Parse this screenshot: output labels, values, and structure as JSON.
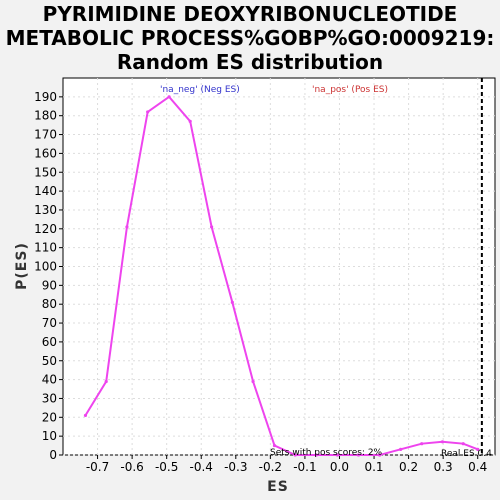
{
  "title_lines": [
    "PYRIMIDINE DEOXYRIBONUCLEOTIDE",
    "METABOLIC PROCESS%GOBP%GO:0009219:",
    "Random ES distribution"
  ],
  "chart_data": {
    "type": "line",
    "xlabel": "ES",
    "ylabel": "P(ES)",
    "xlim": [
      -0.8,
      0.45
    ],
    "ylim": [
      0,
      200
    ],
    "xticks": [
      "-0.7",
      "-0.6",
      "-0.5",
      "-0.4",
      "-0.3",
      "-0.2",
      "-0.1",
      "0.0",
      "0.1",
      "0.2",
      "0.3",
      "0.4"
    ],
    "yticks": [
      "0",
      "10",
      "20",
      "30",
      "40",
      "50",
      "60",
      "70",
      "80",
      "90",
      "100",
      "110",
      "120",
      "130",
      "140",
      "150",
      "160",
      "170",
      "180",
      "190"
    ],
    "grid": true,
    "series_color": "#ee44ee",
    "x": [
      -0.735,
      -0.675,
      -0.615,
      -0.555,
      -0.493,
      -0.432,
      -0.37,
      -0.31,
      -0.25,
      -0.188,
      -0.128,
      -0.067,
      -0.006,
      0.055,
      0.116,
      0.177,
      0.238,
      0.298,
      0.358,
      0.4
    ],
    "y": [
      21,
      39,
      121,
      182,
      190,
      177,
      121,
      81,
      39,
      5,
      0,
      0,
      0,
      0,
      0,
      3,
      6,
      7,
      6,
      3
    ],
    "real_es_x": 0.412,
    "annotations": {
      "neg_label": "'na_neg' (Neg ES)",
      "pos_label": "'na_pos' (Pos ES)",
      "pos_scores": "Sets with pos scores: 2%",
      "real_es": "Real ES 0.4",
      "neg_color": "#3333cc",
      "pos_color": "#cc3333"
    }
  }
}
